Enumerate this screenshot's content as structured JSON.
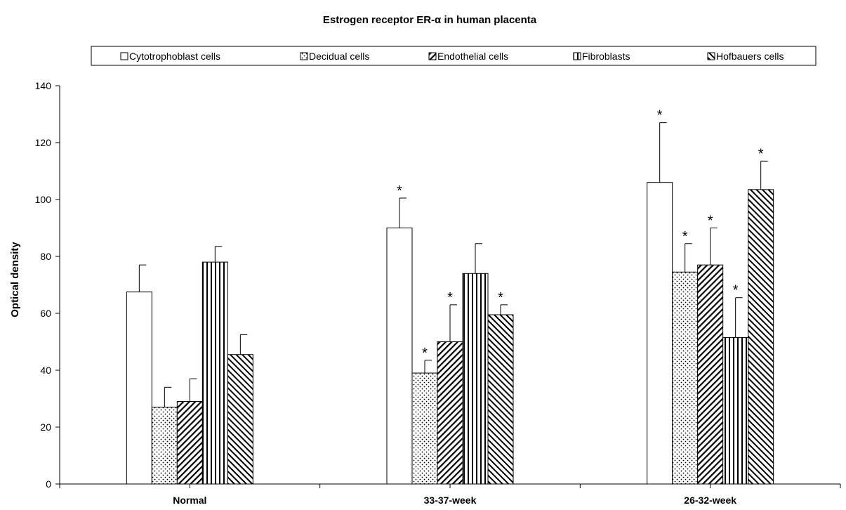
{
  "chart_data": {
    "type": "bar",
    "title": "Estrogen receptor ER-α in human placenta",
    "title_parts": [
      "Estrogen receptor ER-",
      "α",
      " in human placenta"
    ],
    "ylabel": "Optical density",
    "xlabel": "",
    "ylim": [
      0,
      140
    ],
    "yticks": [
      0,
      20,
      40,
      60,
      80,
      100,
      120,
      140
    ],
    "ytick_labels": [
      "0",
      "20",
      "40",
      "60",
      "80",
      "100",
      "120",
      "140"
    ],
    "categories": [
      "Normal",
      "33-37-week",
      "26-32-week"
    ],
    "legend_position": "top",
    "grid": false,
    "significance_marker": "*",
    "series": [
      {
        "name": "Cytotrophoblast cells",
        "pattern": "blank",
        "values": [
          67.5,
          90,
          106
        ],
        "errors": [
          9.5,
          10.5,
          21
        ],
        "significant": [
          false,
          true,
          true
        ]
      },
      {
        "name": "Decidual cells",
        "pattern": "dots",
        "values": [
          27,
          39,
          74.5
        ],
        "errors": [
          7,
          4.5,
          10
        ],
        "significant": [
          false,
          true,
          true
        ]
      },
      {
        "name": "Endothelial cells",
        "pattern": "diagonal-up",
        "values": [
          29,
          50,
          77
        ],
        "errors": [
          8,
          13,
          13
        ],
        "significant": [
          false,
          true,
          true
        ]
      },
      {
        "name": "Fibroblasts",
        "pattern": "vertical",
        "values": [
          78,
          74,
          51.5
        ],
        "errors": [
          5.5,
          10.5,
          14
        ],
        "significant": [
          false,
          false,
          true
        ]
      },
      {
        "name": "Hofbauers cells",
        "pattern": "diagonal-down",
        "values": [
          45.5,
          59.5,
          103.5
        ],
        "errors": [
          7,
          3.5,
          10
        ],
        "significant": [
          false,
          true,
          true
        ]
      }
    ]
  }
}
